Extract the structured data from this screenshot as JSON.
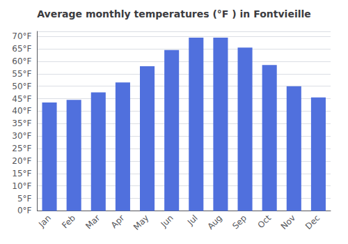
{
  "chart_data": {
    "type": "bar",
    "title": "Average monthly temperatures (°F ) in Fontvieille",
    "categories": [
      "Jan",
      "Feb",
      "Mar",
      "Apr",
      "May",
      "Jun",
      "Jul",
      "Aug",
      "Sep",
      "Oct",
      "Nov",
      "Dec"
    ],
    "values": [
      43.5,
      44.5,
      47.5,
      51.5,
      58.0,
      64.5,
      69.5,
      69.5,
      65.5,
      58.5,
      50.0,
      45.5
    ],
    "ylim": [
      0,
      72
    ],
    "yticks": [
      {
        "value": 0,
        "label": "0°F"
      },
      {
        "value": 5,
        "label": "5°F"
      },
      {
        "value": 10,
        "label": "10°F"
      },
      {
        "value": 15,
        "label": "15°F"
      },
      {
        "value": 20,
        "label": "20°F"
      },
      {
        "value": 25,
        "label": "25°F"
      },
      {
        "value": 30,
        "label": "30°F"
      },
      {
        "value": 35,
        "label": "35°F"
      },
      {
        "value": 40,
        "label": "40°F"
      },
      {
        "value": 45,
        "label": "45°F"
      },
      {
        "value": 50,
        "label": "50°F"
      },
      {
        "value": 55,
        "label": "55°F"
      },
      {
        "value": 60,
        "label": "60°F"
      },
      {
        "value": 65,
        "label": "65°F"
      },
      {
        "value": 70,
        "label": "70°F"
      }
    ],
    "grid": true
  }
}
